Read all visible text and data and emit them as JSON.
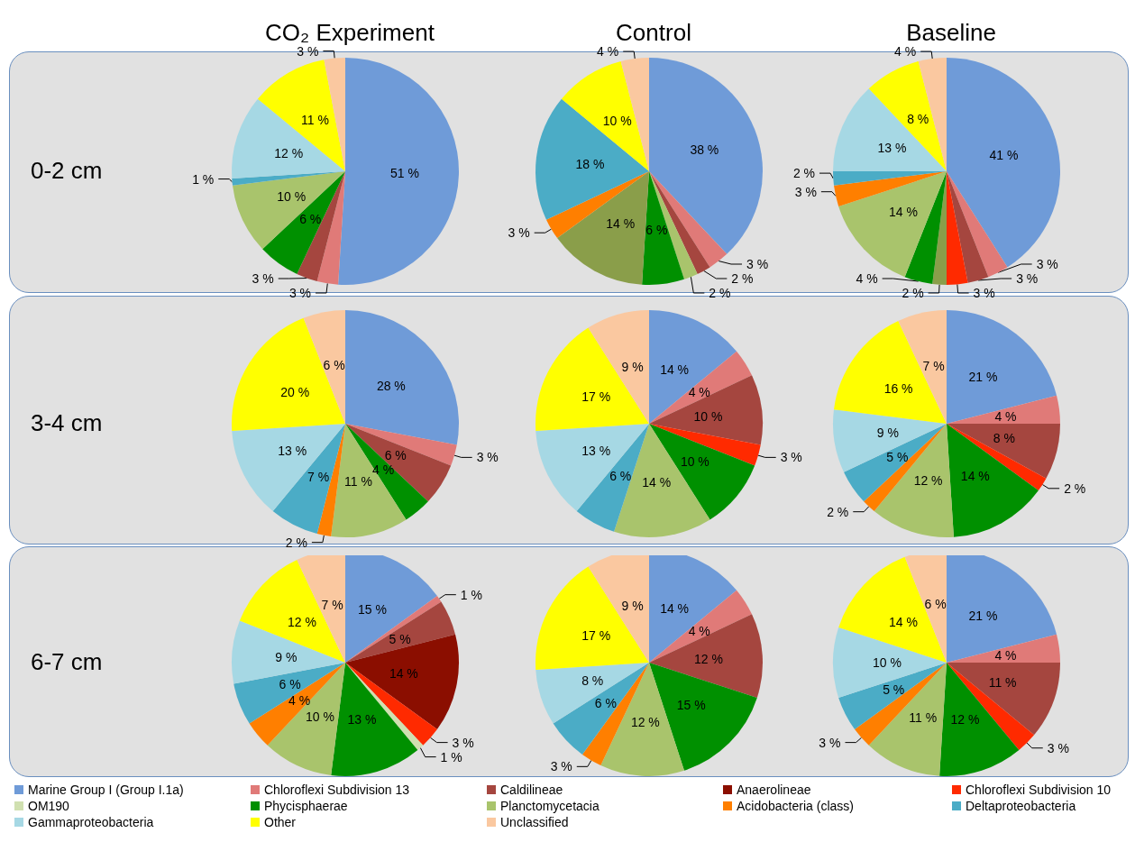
{
  "chart_data": [
    {
      "type": "pie",
      "title": "CO₂ Experiment",
      "ylabel": "0-2 cm",
      "categories": [
        null,
        null,
        null,
        null,
        null,
        null,
        null,
        null,
        null
      ],
      "values": [
        51,
        3,
        3,
        6,
        10,
        1,
        12,
        11,
        3
      ],
      "value_labels": [
        "51 %",
        "3 %",
        "3 %",
        "6 %",
        "10 %",
        "1 %",
        "12 %",
        "11 %",
        "3 %"
      ],
      "colors": [
        "#6f9bd8",
        "#e07a78",
        "#a5463f",
        "#009000",
        "#a9c46c",
        "#4bacc6",
        "#a6d8e4",
        "#ffff00",
        "#fac8a0"
      ]
    },
    {
      "type": "pie",
      "title": "Control",
      "categories": [
        null,
        null,
        null,
        null,
        null,
        null,
        null,
        null,
        null,
        null
      ],
      "values": [
        38,
        3,
        2,
        2,
        6,
        14,
        3,
        18,
        10,
        4
      ],
      "value_labels": [
        "38 %",
        "3 %",
        "2 %",
        "2 %",
        "6 %",
        "14 %",
        "3 %",
        "18 %",
        "10 %",
        "4 %"
      ],
      "colors": [
        "#6f9bd8",
        "#e07a78",
        "#a5463f",
        "#a9c46c",
        "#009000",
        "#8a9e4a",
        "#ff7f00",
        "#4bacc6",
        "#ffff00",
        "#fac8a0"
      ]
    },
    {
      "type": "pie",
      "title": "Baseline",
      "categories": [
        null,
        null,
        null,
        null,
        null,
        null,
        null,
        null,
        null,
        null,
        null,
        null
      ],
      "values": [
        41,
        3,
        3,
        3,
        2,
        4,
        14,
        3,
        2,
        13,
        8,
        4
      ],
      "value_labels": [
        "41 %",
        "3 %",
        "3 %",
        "3 %",
        "2 %",
        "4 %",
        "14 %",
        "3 %",
        "2 %",
        "13 %",
        "8 %",
        "4 %"
      ],
      "colors": [
        "#6f9bd8",
        "#e07a78",
        "#a5463f",
        "#ff2a00",
        "#8a9e4a",
        "#009000",
        "#a9c46c",
        "#ff7f00",
        "#4bacc6",
        "#a6d8e4",
        "#ffff00",
        "#fac8a0"
      ]
    },
    {
      "type": "pie",
      "ylabel": "3-4 cm",
      "categories": [
        null,
        null,
        null,
        null,
        null,
        null,
        null,
        null,
        null,
        null
      ],
      "values": [
        28,
        3,
        6,
        4,
        11,
        2,
        7,
        13,
        20,
        6
      ],
      "value_labels": [
        "28 %",
        "3 %",
        "6 %",
        "4 %",
        "11 %",
        "2 %",
        "7 %",
        "13 %",
        "20 %",
        "6 %"
      ],
      "colors": [
        "#6f9bd8",
        "#e07a78",
        "#a5463f",
        "#009000",
        "#a9c46c",
        "#ff7f00",
        "#4bacc6",
        "#a6d8e4",
        "#ffff00",
        "#fac8a0"
      ]
    },
    {
      "type": "pie",
      "categories": [
        null,
        null,
        null,
        null,
        null,
        null,
        null,
        null,
        null,
        null
      ],
      "values": [
        14,
        4,
        10,
        3,
        10,
        14,
        6,
        13,
        17,
        9
      ],
      "value_labels": [
        "14 %",
        "4 %",
        "10 %",
        "3 %",
        "10 %",
        "14 %",
        "6 %",
        "13 %",
        "17 %",
        "9 %"
      ],
      "colors": [
        "#6f9bd8",
        "#e07a78",
        "#a5463f",
        "#ff2a00",
        "#009000",
        "#a9c46c",
        "#4bacc6",
        "#a6d8e4",
        "#ffff00",
        "#fac8a0"
      ]
    },
    {
      "type": "pie",
      "categories": [
        null,
        null,
        null,
        null,
        null,
        null,
        null,
        null,
        null,
        null,
        null
      ],
      "values": [
        21,
        4,
        8,
        2,
        14,
        12,
        2,
        5,
        9,
        16,
        7
      ],
      "value_labels": [
        "21 %",
        "4 %",
        "8 %",
        "2 %",
        "14 %",
        "12 %",
        "2 %",
        "5 %",
        "9 %",
        "16 %",
        "7 %"
      ],
      "colors": [
        "#6f9bd8",
        "#e07a78",
        "#a5463f",
        "#ff2a00",
        "#009000",
        "#a9c46c",
        "#ff7f00",
        "#4bacc6",
        "#a6d8e4",
        "#ffff00",
        "#fac8a0"
      ]
    },
    {
      "type": "pie",
      "ylabel": "6-7 cm",
      "legend": "bottom",
      "categories": [
        "Marine Group I (Group I.1a)",
        "Chloroflexi Subdivision 13",
        "Caldilineae",
        "Anaerolineae",
        "Chloroflexi Subdivision 10",
        "OM190",
        "Phycisphaerae",
        "Planctomycetacia",
        "Acidobacteria (class)",
        "Deltaproteobacteria",
        "Gammaproteobacteria",
        "Other",
        "Unclassified"
      ],
      "values": [
        15,
        1,
        5,
        14,
        3,
        1,
        13,
        10,
        4,
        6,
        9,
        12,
        7
      ],
      "value_labels": [
        "15 %",
        "1 %",
        "5 %",
        "14 %",
        "3 %",
        "1 %",
        "13 %",
        "10 %",
        "4 %",
        "6 %",
        "9 %",
        "12 %",
        "7 %"
      ],
      "colors": [
        "#6f9bd8",
        "#e07a78",
        "#a5463f",
        "#8b0e00",
        "#ff2a00",
        "#d0e0b0",
        "#009000",
        "#a9c46c",
        "#ff7f00",
        "#4bacc6",
        "#a6d8e4",
        "#ffff00",
        "#fac8a0"
      ]
    },
    {
      "type": "pie",
      "categories": [
        null,
        null,
        null,
        null,
        null,
        null,
        null,
        null,
        null,
        null
      ],
      "values": [
        14,
        4,
        12,
        15,
        12,
        3,
        6,
        8,
        17,
        9
      ],
      "value_labels": [
        "14 %",
        "4 %",
        "12 %",
        "15 %",
        "12 %",
        "3 %",
        "6 %",
        "8 %",
        "17 %",
        "9 %"
      ],
      "colors": [
        "#6f9bd8",
        "#e07a78",
        "#a5463f",
        "#009000",
        "#a9c46c",
        "#ff7f00",
        "#4bacc6",
        "#a6d8e4",
        "#ffff00",
        "#fac8a0"
      ]
    },
    {
      "type": "pie",
      "categories": [
        null,
        null,
        null,
        null,
        null,
        null,
        null,
        null,
        null,
        null,
        null
      ],
      "values": [
        21,
        4,
        11,
        3,
        12,
        11,
        3,
        5,
        10,
        14,
        6
      ],
      "value_labels": [
        "21 %",
        "4 %",
        "11 %",
        "3 %",
        "12 %",
        "11 %",
        "3 %",
        "5 %",
        "10 %",
        "14 %",
        "6 %"
      ],
      "colors": [
        "#6f9bd8",
        "#e07a78",
        "#a5463f",
        "#ff2a00",
        "#009000",
        "#a9c46c",
        "#ff7f00",
        "#4bacc6",
        "#a6d8e4",
        "#ffff00",
        "#fac8a0"
      ]
    }
  ]
}
